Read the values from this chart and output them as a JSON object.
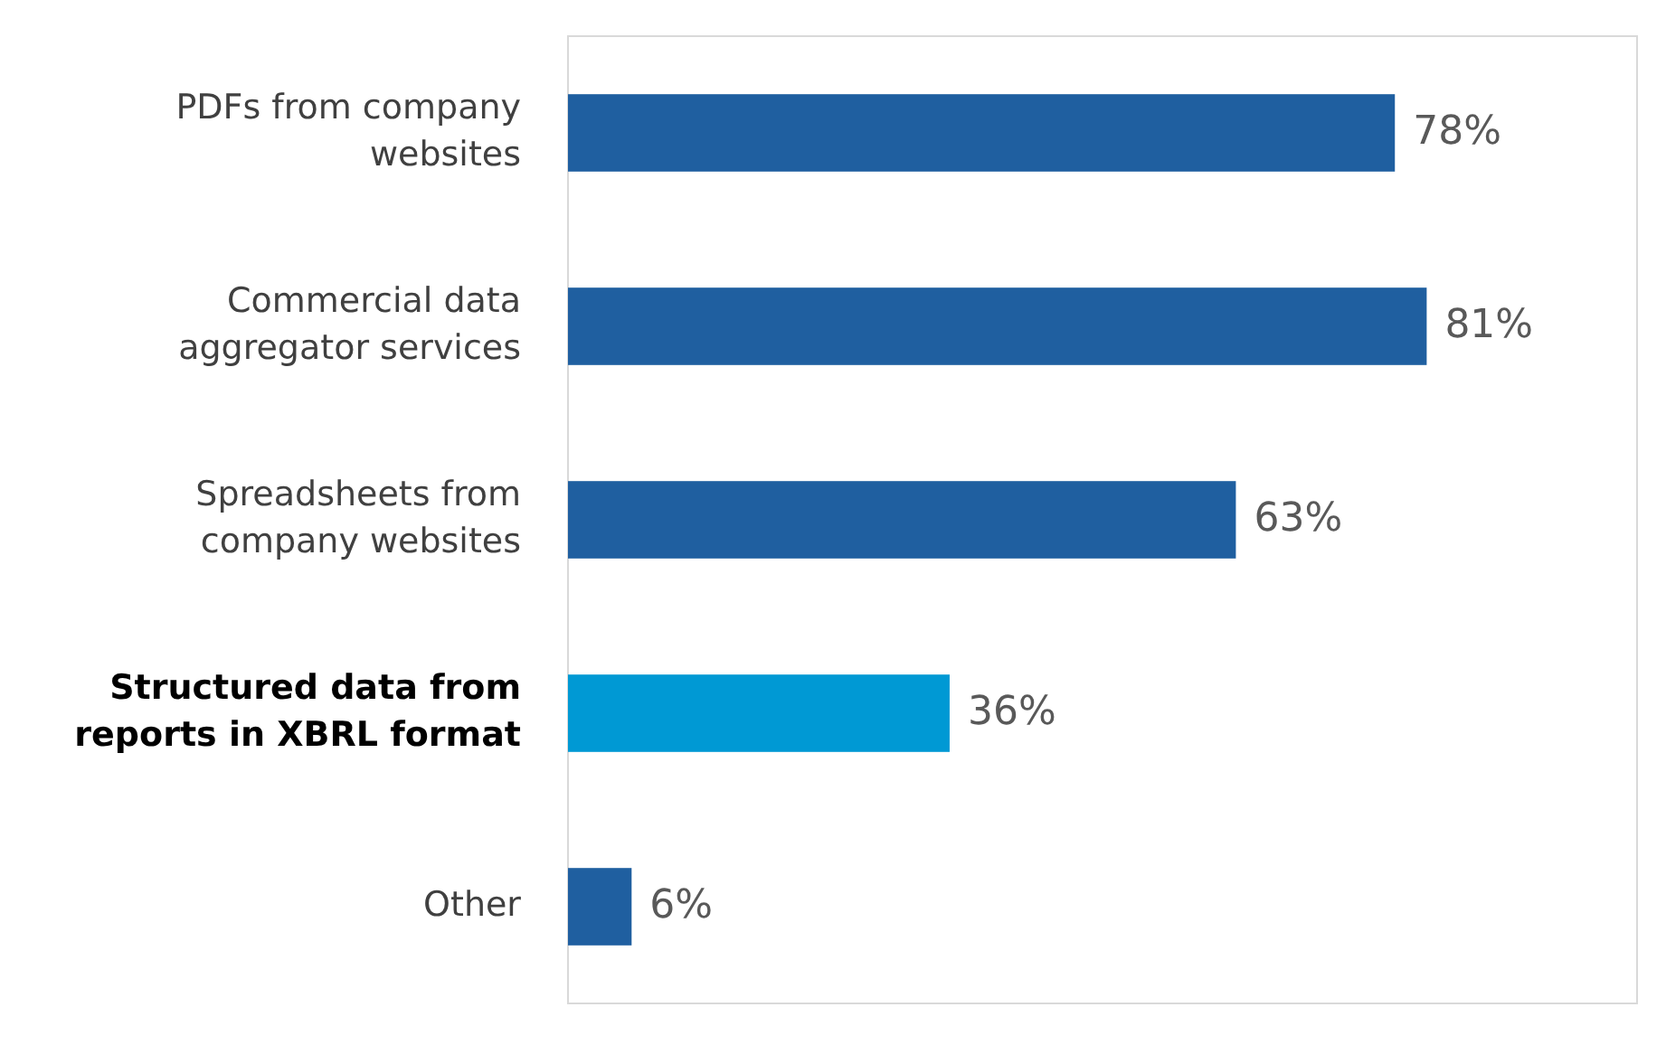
{
  "chart_data": {
    "type": "bar",
    "orientation": "horizontal",
    "categories": [
      "PDFs from company\nwebsites",
      "Commercial data\naggregator services",
      "Spreadsheets from\ncompany websites",
      "Structured data from\nreports in XBRL format",
      "Other"
    ],
    "values": [
      78,
      81,
      63,
      36,
      6
    ],
    "value_labels": [
      "78%",
      "81%",
      "63%",
      "36%",
      "6%"
    ],
    "colors": [
      "#1f5fa0",
      "#1f5fa0",
      "#1f5fa0",
      "#0099d4",
      "#1f5fa0"
    ]
  }
}
